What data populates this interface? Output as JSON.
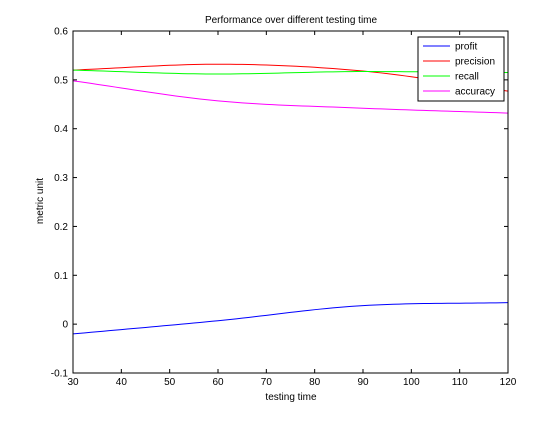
{
  "chart_data": {
    "type": "line",
    "title": "Performance over different testing time",
    "xlabel": "testing time",
    "ylabel": "metric unit",
    "xlim": [
      30,
      120
    ],
    "ylim": [
      -0.1,
      0.6
    ],
    "xticks": [
      30,
      40,
      50,
      60,
      70,
      80,
      90,
      100,
      110,
      120
    ],
    "yticks": [
      -0.1,
      0,
      0.1,
      0.2,
      0.3,
      0.4,
      0.5,
      0.6
    ],
    "ytick_labels": [
      "-0.1",
      "0",
      "0.1",
      "0.2",
      "0.3",
      "0.4",
      "0.5",
      "0.6"
    ],
    "grid": false,
    "legend_position": "top-right",
    "x": [
      30,
      60,
      90,
      120
    ],
    "series": [
      {
        "name": "profit",
        "color": "#0000ff",
        "values": [
          -0.02,
          0.007,
          0.038,
          0.044
        ]
      },
      {
        "name": "precision",
        "color": "#ff0000",
        "values": [
          0.52,
          0.532,
          0.518,
          0.477
        ]
      },
      {
        "name": "recall",
        "color": "#00ff00",
        "values": [
          0.52,
          0.512,
          0.517,
          0.515
        ]
      },
      {
        "name": "accuracy",
        "color": "#ff00ff",
        "values": [
          0.498,
          0.457,
          0.442,
          0.432
        ]
      }
    ]
  }
}
